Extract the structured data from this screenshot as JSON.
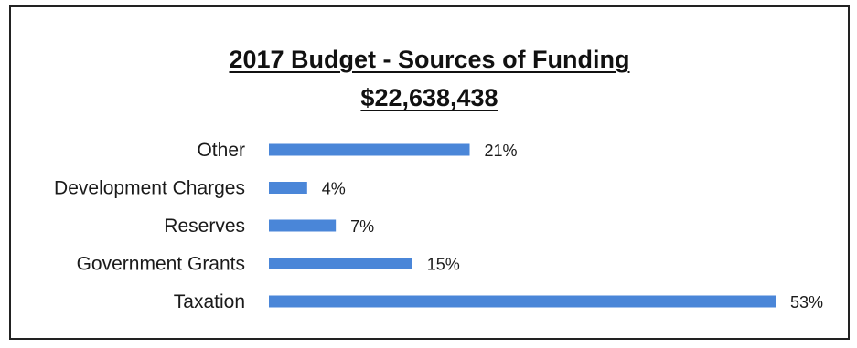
{
  "chart_data": {
    "type": "bar",
    "orientation": "horizontal",
    "title": "2017 Budget - Sources of Funding",
    "subtitle": "$22,638,438",
    "categories": [
      "Other",
      "Development Charges",
      "Reserves",
      "Government Grants",
      "Taxation"
    ],
    "values": [
      21,
      4,
      7,
      15,
      53
    ],
    "value_labels": [
      "21%",
      "4%",
      "7%",
      "15%",
      "53%"
    ],
    "unit": "%",
    "xlim": [
      0,
      53
    ],
    "grid": false,
    "legend": "none",
    "bar_color": "#4a86d8"
  }
}
